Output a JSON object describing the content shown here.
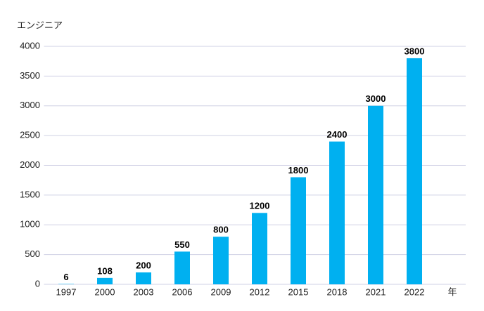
{
  "chart_data": {
    "type": "bar",
    "y_label": "エンジニア",
    "x_label": "年",
    "categories": [
      "1997",
      "2000",
      "2003",
      "2006",
      "2009",
      "2012",
      "2015",
      "2018",
      "2021",
      "2022"
    ],
    "values": [
      6,
      108,
      200,
      550,
      800,
      1200,
      1800,
      2400,
      3000,
      3800
    ],
    "color": "#00b0f0",
    "ylim": [
      0,
      4000
    ],
    "yticks": [
      0,
      500,
      1000,
      1500,
      2000,
      2500,
      3000,
      3500,
      4000
    ],
    "grid": true
  }
}
